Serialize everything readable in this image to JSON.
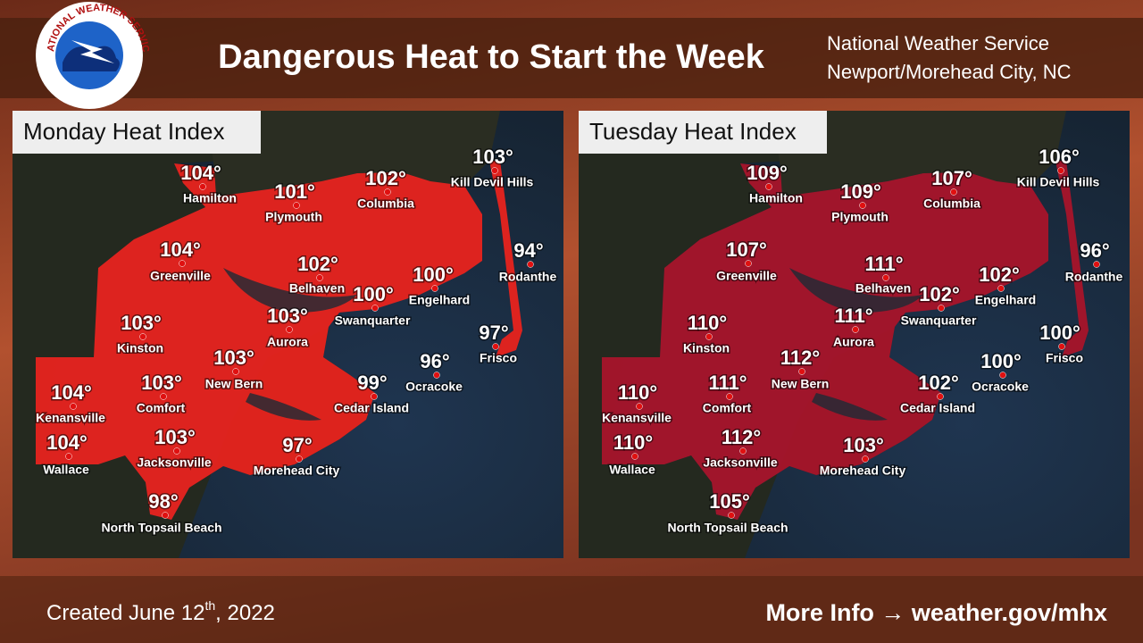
{
  "header": {
    "title": "Dangerous Heat to Start the Week",
    "logo_text": "NATIONAL WEATHER SERVICE",
    "office": [
      "National Weather Service",
      "Newport/Morehead City, NC"
    ]
  },
  "maps": [
    {
      "title": "Monday Heat Index",
      "cities": [
        {
          "name": "Hamilton",
          "temp": "104°"
        },
        {
          "name": "Plymouth",
          "temp": "101°"
        },
        {
          "name": "Columbia",
          "temp": "102°"
        },
        {
          "name": "Kill Devil Hills",
          "temp": "103°"
        },
        {
          "name": "Greenville",
          "temp": "104°"
        },
        {
          "name": "Belhaven",
          "temp": "102°"
        },
        {
          "name": "Engelhard",
          "temp": "100°"
        },
        {
          "name": "Rodanthe",
          "temp": "94°"
        },
        {
          "name": "Swanquarter",
          "temp": "100°"
        },
        {
          "name": "Aurora",
          "temp": "103°"
        },
        {
          "name": "Kinston",
          "temp": "103°"
        },
        {
          "name": "Frisco",
          "temp": "97°"
        },
        {
          "name": "New Bern",
          "temp": "103°"
        },
        {
          "name": "Ocracoke",
          "temp": "96°"
        },
        {
          "name": "Comfort",
          "temp": "103°"
        },
        {
          "name": "Cedar Island",
          "temp": "99°"
        },
        {
          "name": "Kenansville",
          "temp": "104°"
        },
        {
          "name": "Jacksonville",
          "temp": "103°"
        },
        {
          "name": "Wallace",
          "temp": "104°"
        },
        {
          "name": "Morehead City",
          "temp": "97°"
        },
        {
          "name": "North Topsail Beach",
          "temp": "98°"
        }
      ]
    },
    {
      "title": "Tuesday Heat Index",
      "cities": [
        {
          "name": "Hamilton",
          "temp": "109°"
        },
        {
          "name": "Plymouth",
          "temp": "109°"
        },
        {
          "name": "Columbia",
          "temp": "107°"
        },
        {
          "name": "Kill Devil Hills",
          "temp": "106°"
        },
        {
          "name": "Greenville",
          "temp": "107°"
        },
        {
          "name": "Belhaven",
          "temp": "111°"
        },
        {
          "name": "Engelhard",
          "temp": "102°"
        },
        {
          "name": "Rodanthe",
          "temp": "96°"
        },
        {
          "name": "Swanquarter",
          "temp": "102°"
        },
        {
          "name": "Aurora",
          "temp": "111°"
        },
        {
          "name": "Kinston",
          "temp": "110°"
        },
        {
          "name": "Frisco",
          "temp": "100°"
        },
        {
          "name": "New Bern",
          "temp": "112°"
        },
        {
          "name": "Ocracoke",
          "temp": "100°"
        },
        {
          "name": "Comfort",
          "temp": "111°"
        },
        {
          "name": "Cedar Island",
          "temp": "102°"
        },
        {
          "name": "Kenansville",
          "temp": "110°"
        },
        {
          "name": "Jacksonville",
          "temp": "112°"
        },
        {
          "name": "Wallace",
          "temp": "110°"
        },
        {
          "name": "Morehead City",
          "temp": "103°"
        },
        {
          "name": "North Topsail Beach",
          "temp": "105°"
        }
      ]
    }
  ],
  "footer": {
    "created": "Created June 12",
    "created_sup": "th",
    "created_year": ", 2022",
    "more_info": "More Info → weather.gov/mhx"
  }
}
